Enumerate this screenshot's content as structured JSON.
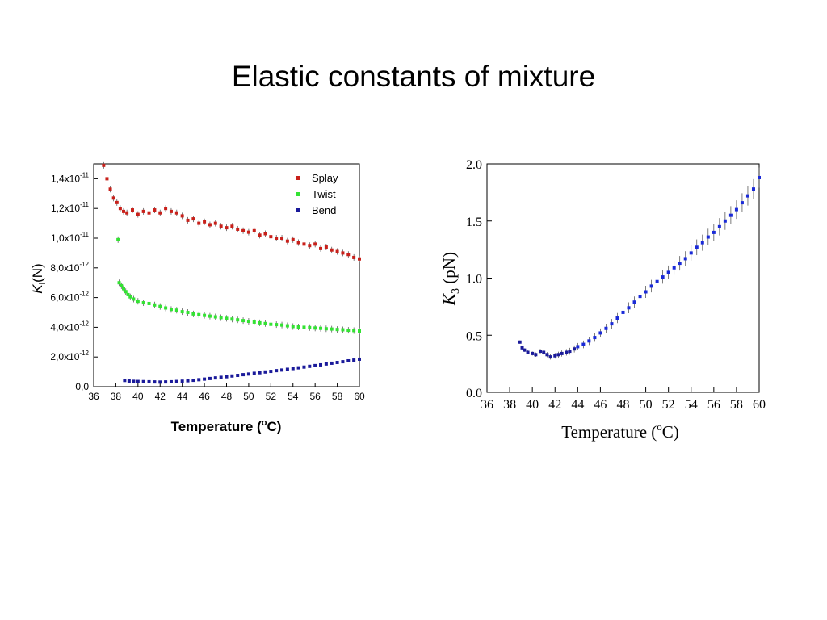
{
  "slide": {
    "title": "Elastic constants of mixture"
  },
  "colors": {
    "splay": "#c8201a",
    "twist": "#33e233",
    "bend": "#1a1a9a",
    "k3": "#1a2ad8",
    "errorbar": "#444444"
  },
  "chart_data": [
    {
      "type": "scatter",
      "xlabel": "Temperature (oC)",
      "xlabel_parts": {
        "main": "Temperature (",
        "sup": "o",
        "end": "C)"
      },
      "ylabel": "Ki(N)",
      "ylabel_parts": {
        "main": "K",
        "sub": "i",
        "end": "(N)"
      },
      "xlim": [
        36,
        60
      ],
      "ylim": [
        0,
        1.5e-11
      ],
      "x_ticks": [
        "36",
        "38",
        "40",
        "42",
        "44",
        "46",
        "48",
        "50",
        "52",
        "54",
        "56",
        "58",
        "60"
      ],
      "y_ticks": [
        {
          "value": 0,
          "label": "0,0",
          "exp": ""
        },
        {
          "value": 2e-12,
          "label": "2,0x10",
          "exp": "-12"
        },
        {
          "value": 4e-12,
          "label": "4,0x10",
          "exp": "-12"
        },
        {
          "value": 6e-12,
          "label": "6,0x10",
          "exp": "-12"
        },
        {
          "value": 8e-12,
          "label": "8,0x10",
          "exp": "-12"
        },
        {
          "value": 1e-11,
          "label": "1,0x10",
          "exp": "-11"
        },
        {
          "value": 1.2e-11,
          "label": "1,2x10",
          "exp": "-11"
        },
        {
          "value": 1.4e-11,
          "label": "1,4x10",
          "exp": "-11"
        }
      ],
      "legend_position": "top-right",
      "series": [
        {
          "name": "Splay",
          "x": [
            36.9,
            37.2,
            37.5,
            37.8,
            38.1,
            38.4,
            38.7,
            39.0,
            39.5,
            40.0,
            40.5,
            41.0,
            41.5,
            42.0,
            42.5,
            43.0,
            43.5,
            44.0,
            44.5,
            45.0,
            45.5,
            46.0,
            46.5,
            47.0,
            47.5,
            48.0,
            48.5,
            49.0,
            49.5,
            50.0,
            50.5,
            51.0,
            51.5,
            52.0,
            52.5,
            53.0,
            53.5,
            54.0,
            54.5,
            55.0,
            55.5,
            56.0,
            56.5,
            57.0,
            57.5,
            58.0,
            58.5,
            59.0,
            59.5,
            60.0
          ],
          "y": [
            1.49e-11,
            1.4e-11,
            1.33e-11,
            1.27e-11,
            1.24e-11,
            1.2e-11,
            1.18e-11,
            1.17e-11,
            1.19e-11,
            1.16e-11,
            1.18e-11,
            1.17e-11,
            1.19e-11,
            1.17e-11,
            1.2e-11,
            1.18e-11,
            1.17e-11,
            1.15e-11,
            1.12e-11,
            1.13e-11,
            1.1e-11,
            1.11e-11,
            1.09e-11,
            1.1e-11,
            1.08e-11,
            1.07e-11,
            1.08e-11,
            1.06e-11,
            1.05e-11,
            1.04e-11,
            1.05e-11,
            1.02e-11,
            1.03e-11,
            1.01e-11,
            1e-11,
            1e-11,
            9.8e-12,
            9.9e-12,
            9.7e-12,
            9.6e-12,
            9.5e-12,
            9.6e-12,
            9.3e-12,
            9.4e-12,
            9.2e-12,
            9.1e-12,
            9e-12,
            8.9e-12,
            8.7e-12,
            8.6e-12
          ]
        },
        {
          "name": "Twist",
          "x": [
            38.2,
            38.3,
            38.5,
            38.7,
            38.9,
            39.1,
            39.3,
            39.6,
            40.0,
            40.5,
            41.0,
            41.5,
            42.0,
            42.5,
            43.0,
            43.5,
            44.0,
            44.5,
            45.0,
            45.5,
            46.0,
            46.5,
            47.0,
            47.5,
            48.0,
            48.5,
            49.0,
            49.5,
            50.0,
            50.5,
            51.0,
            51.5,
            52.0,
            52.5,
            53.0,
            53.5,
            54.0,
            54.5,
            55.0,
            55.5,
            56.0,
            56.5,
            57.0,
            57.5,
            58.0,
            58.5,
            59.0,
            59.5,
            60.0
          ],
          "y": [
            9.9e-12,
            7e-12,
            6.8e-12,
            6.6e-12,
            6.4e-12,
            6.2e-12,
            6.05e-12,
            5.9e-12,
            5.75e-12,
            5.65e-12,
            5.6e-12,
            5.5e-12,
            5.4e-12,
            5.3e-12,
            5.2e-12,
            5.15e-12,
            5.05e-12,
            5e-12,
            4.9e-12,
            4.85e-12,
            4.8e-12,
            4.75e-12,
            4.7e-12,
            4.65e-12,
            4.6e-12,
            4.55e-12,
            4.5e-12,
            4.45e-12,
            4.4e-12,
            4.35e-12,
            4.3e-12,
            4.25e-12,
            4.2e-12,
            4.18e-12,
            4.15e-12,
            4.1e-12,
            4.05e-12,
            4.02e-12,
            4e-12,
            3.98e-12,
            3.95e-12,
            3.93e-12,
            3.9e-12,
            3.88e-12,
            3.85e-12,
            3.83e-12,
            3.8e-12,
            3.78e-12,
            3.75e-12
          ]
        },
        {
          "name": "Bend",
          "x": [
            38.8,
            39.2,
            39.6,
            40.0,
            40.5,
            41.0,
            41.5,
            42.0,
            42.5,
            43.0,
            43.5,
            44.0,
            44.5,
            45.0,
            45.5,
            46.0,
            46.5,
            47.0,
            47.5,
            48.0,
            48.5,
            49.0,
            49.5,
            50.0,
            50.5,
            51.0,
            51.5,
            52.0,
            52.5,
            53.0,
            53.5,
            54.0,
            54.5,
            55.0,
            55.5,
            56.0,
            56.5,
            57.0,
            57.5,
            58.0,
            58.5,
            59.0,
            59.5,
            60.0
          ],
          "y": [
            4.2e-13,
            3.8e-13,
            3.6e-13,
            3.5e-13,
            3.4e-13,
            3.3e-13,
            3.2e-13,
            3.1e-13,
            3.2e-13,
            3.3e-13,
            3.5e-13,
            3.7e-13,
            4e-13,
            4.3e-13,
            4.7e-13,
            5.1e-13,
            5.5e-13,
            5.9e-13,
            6.3e-13,
            6.7e-13,
            7.2e-13,
            7.6e-13,
            8.1e-13,
            8.5e-13,
            9e-13,
            9.4e-13,
            9.9e-13,
            1.03e-12,
            1.08e-12,
            1.12e-12,
            1.17e-12,
            1.22e-12,
            1.27e-12,
            1.32e-12,
            1.37e-12,
            1.42e-12,
            1.47e-12,
            1.53e-12,
            1.58e-12,
            1.63e-12,
            1.68e-12,
            1.74e-12,
            1.79e-12,
            1.85e-12
          ]
        }
      ]
    },
    {
      "type": "scatter",
      "xlabel": "Temperature (oC)",
      "xlabel_parts": {
        "main": "Temperature (",
        "sup": "o",
        "end": "C)"
      },
      "ylabel": "K3 (pN)",
      "ylabel_parts": {
        "main": "K",
        "sub": "3",
        "end": " (pN)"
      },
      "xlim": [
        36,
        60
      ],
      "ylim": [
        0,
        2.0
      ],
      "x_ticks": [
        "36",
        "38",
        "40",
        "42",
        "44",
        "46",
        "48",
        "50",
        "52",
        "54",
        "56",
        "58",
        "60"
      ],
      "y_ticks": [
        {
          "value": 0,
          "label": "0.0"
        },
        {
          "value": 0.5,
          "label": "0.5"
        },
        {
          "value": 1.0,
          "label": "1.0"
        },
        {
          "value": 1.5,
          "label": "1.5"
        },
        {
          "value": 2.0,
          "label": "2.0"
        }
      ],
      "series": [
        {
          "x": [
            38.9,
            39.1,
            39.3,
            39.6,
            40.0,
            40.3,
            40.7,
            41.0,
            41.3,
            41.6,
            42.0,
            42.3,
            42.6,
            43.0,
            43.3,
            43.7,
            44.0,
            44.5,
            45.0,
            45.5,
            46.0,
            46.5,
            47.0,
            47.5,
            48.0,
            48.5,
            49.0,
            49.5,
            50.0,
            50.5,
            51.0,
            51.5,
            52.0,
            52.5,
            53.0,
            53.5,
            54.0,
            54.5,
            55.0,
            55.5,
            56.0,
            56.5,
            57.0,
            57.5,
            58.0,
            58.5,
            59.0,
            59.5,
            60.0
          ],
          "y": [
            0.44,
            0.39,
            0.37,
            0.35,
            0.34,
            0.33,
            0.36,
            0.35,
            0.33,
            0.31,
            0.32,
            0.33,
            0.34,
            0.35,
            0.36,
            0.38,
            0.4,
            0.42,
            0.45,
            0.48,
            0.52,
            0.56,
            0.6,
            0.65,
            0.7,
            0.74,
            0.79,
            0.84,
            0.88,
            0.93,
            0.97,
            1.01,
            1.05,
            1.09,
            1.13,
            1.17,
            1.22,
            1.27,
            1.31,
            1.36,
            1.4,
            1.45,
            1.5,
            1.55,
            1.6,
            1.66,
            1.72,
            1.78,
            1.88
          ]
        }
      ]
    }
  ]
}
